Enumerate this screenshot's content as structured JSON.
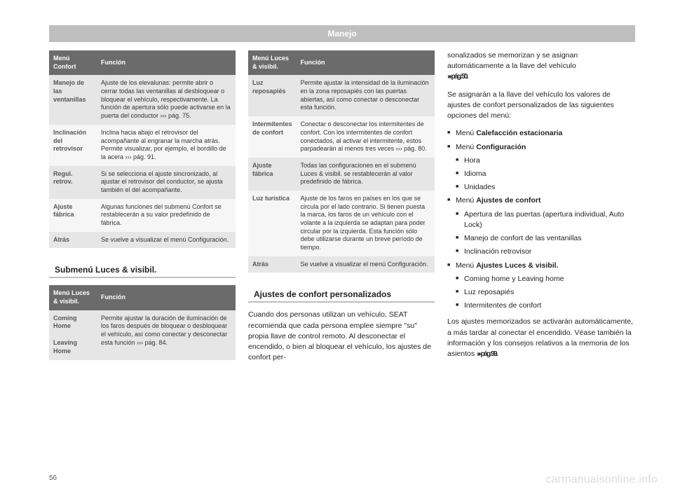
{
  "header": "Manejo",
  "pageNumber": "56",
  "watermark": "carmanualsonline.info",
  "table1": {
    "h1": "Menú Confort",
    "h2": "Función",
    "rows": [
      {
        "label": "Manejo de las ventanillas",
        "desc": "Ajuste de los elevalunas: permite abrir o cerrar todas las ventanillas al desbloquear o bloquear el vehículo, respectivamente. La función de apertura sólo puede activarse en la puerta del conductor ››› pág. 75."
      },
      {
        "label": "Inclinación del retrovisor",
        "desc": "Inclina hacia abajo el retrovisor del acompañante al engranar la marcha atrás. Permite visualizar, por ejemplo, el bordillo de la acera ››› pág. 91."
      },
      {
        "label": "Regul. retrov.",
        "desc": "Si se selecciona el ajuste sincronizado, al ajustar el retrovisor del conductor, se ajusta también el del acompañante."
      },
      {
        "label": "Ajuste fábrica",
        "desc": "Algunas funciones del submenú Confort se restablecerán a su valor predefinido de fábrica."
      },
      {
        "label": "Atrás",
        "desc": "Se vuelve a visualizar el menú Configuración."
      }
    ]
  },
  "subhead1": "Submenú Luces & visibil.",
  "table2a": {
    "h1": "Menú Luces & visibil.",
    "h2": "Función",
    "rows": [
      {
        "label": "Coming Home",
        "desc": "Permite ajustar la duración de iluminación de los faros después de bloquear o desbloquear el vehículo, así como conectar y desconectar esta función ››› pág. 84."
      },
      {
        "label": "Leaving Home",
        "desc": ""
      }
    ]
  },
  "table2b": {
    "h1": "Menú Luces & visibil.",
    "h2": "Función",
    "rows": [
      {
        "label": "Luz reposapiés",
        "desc": "Permite ajustar la intensidad de la iluminación en la zona reposapiés con las puertas abiertas, así como conectar o desconectar esta función."
      },
      {
        "label": "Intermitentes de confort",
        "desc": "Conectar o desconectar los intermitentes de confort. Con los intermitentes de confort conectados, al activar el intermitente, estos parpadearán al menos tres veces ››› pág. 80."
      },
      {
        "label": "Ajuste fábrica",
        "desc": "Todas las configuraciones en el submenú Luces & visibil. se restablecerán al valor predefinido de fábrica."
      },
      {
        "label": "Luz turística",
        "desc": "Ajuste de los faros en países en los que se circula por el lado contrario. Si tienen puesta la marca, los faros de un vehículo con el volante a la izquierda se adaptan para poder circular por la izquierda. Esta función sólo debe utilizarse durante un breve período de tiempo."
      },
      {
        "label": "Atrás",
        "desc": "Se vuelve a visualizar el menú Configuración."
      }
    ]
  },
  "subhead2": "Ajustes de confort personalizados",
  "p1": "Cuando dos personas utilizan un vehículo, SEAT recomienda que cada persona emplee siempre \"su\" propia llave de control remoto. Al desconectar el encendido, o bien al bloquear el vehículo, los ajustes de confort per-",
  "p2a": "sonalizados se memorizan y se asignan automáticamente a la llave del vehículo",
  "p2b": "››› pág. 50.",
  "p3": "Se asignarán a la llave del vehículo los valores de ajustes de confort personalizados de las siguientes opciones del menú:",
  "bullets": [
    {
      "text": "Menú Calefacción estacionaria",
      "bold": "Calefacción estacionaria"
    },
    {
      "text": "Menú Configuración",
      "bold": "Configuración"
    },
    {
      "text": "Hora",
      "sub": true
    },
    {
      "text": "Idioma",
      "sub": true
    },
    {
      "text": "Unidades",
      "sub": true
    },
    {
      "text": "Menú Ajustes de confort",
      "bold": "Ajustes de confort"
    },
    {
      "text": "Apertura de las puertas (apertura individual, Auto Lock)",
      "sub": true
    },
    {
      "text": "Manejo de confort de las ventanillas",
      "sub": true
    },
    {
      "text": "Inclinación retrovisor",
      "sub": true
    },
    {
      "text": "Menú Ajustes Luces & visibil.",
      "bold": "Ajustes Luces & visibil."
    },
    {
      "text": "Coming home y Leaving home",
      "sub": true
    },
    {
      "text": "Luz reposapiés",
      "sub": true
    },
    {
      "text": "Intermitentes de confort",
      "sub": true
    }
  ],
  "p4a": "Los ajustes memorizados se activarán automáticamente, a más tardar al conectar el encendido. Véase también la información y los consejos relativos a la memoria de los asientos ",
  "p4b": "››› pág. 99."
}
